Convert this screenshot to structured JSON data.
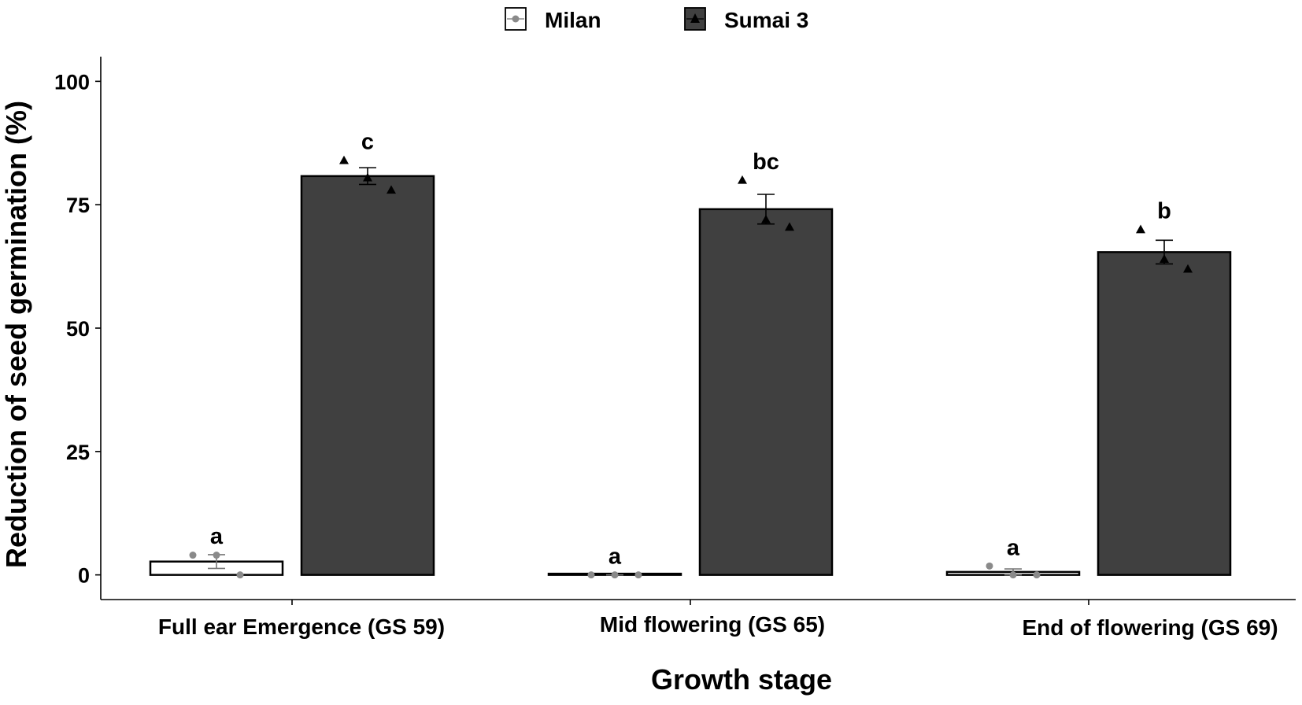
{
  "chart_data": {
    "type": "bar",
    "title": "",
    "xlabel": "Growth stage",
    "ylabel": "Reduction of seed germination (%)",
    "ylim": [
      -5,
      105
    ],
    "yticks": [
      0,
      25,
      50,
      75,
      100
    ],
    "ytick_labels": [
      "0",
      "25",
      "50",
      "75",
      "100"
    ],
    "categories": [
      "Full ear Emergence (GS 59)",
      "Mid flowering (GS 65)",
      "End of flowering (GS 69)"
    ],
    "legend_position": "top",
    "grid": false,
    "series": [
      {
        "name": "Milan",
        "color": "#ffffff",
        "point_color": "#8a8a8a",
        "marker": "circle",
        "values": [
          2.7,
          0.0,
          0.6
        ],
        "error": [
          1.4,
          0.0,
          0.6
        ],
        "points": [
          [
            4.0,
            4.0,
            0.0
          ],
          [
            0.0,
            0.0,
            0.0
          ],
          [
            1.8,
            0.0,
            0.0
          ]
        ],
        "labels": [
          "a",
          "a",
          "a"
        ]
      },
      {
        "name": "Sumai 3",
        "color": "#404040",
        "point_color": "#000000",
        "marker": "triangle",
        "values": [
          80.8,
          74.1,
          65.4
        ],
        "error": [
          1.7,
          3.0,
          2.4
        ],
        "points": [
          [
            84.0,
            80.5,
            78.0
          ],
          [
            80.0,
            72.0,
            70.5
          ],
          [
            70.0,
            64.0,
            62.0
          ]
        ],
        "labels": [
          "c",
          "bc",
          "b"
        ]
      }
    ]
  }
}
